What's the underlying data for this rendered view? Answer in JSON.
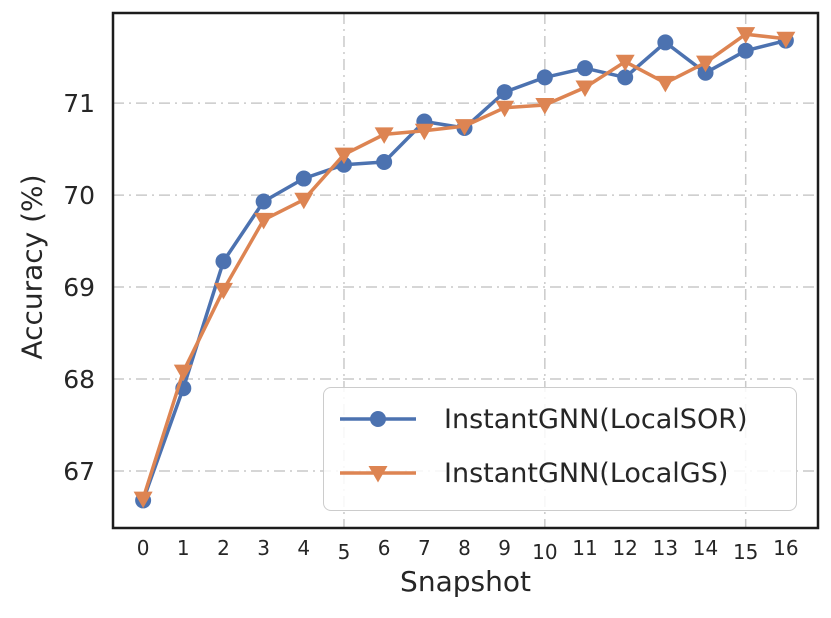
{
  "chart_data": {
    "type": "line",
    "title": "",
    "xlabel": "Snapshot",
    "ylabel": "Accuracy (%)",
    "x": [
      0,
      1,
      2,
      3,
      4,
      5,
      6,
      7,
      8,
      9,
      10,
      11,
      12,
      13,
      14,
      15,
      16
    ],
    "series": [
      {
        "name": "InstantGNN(LocalSOR)",
        "marker": "circle",
        "color": "#4C72B0",
        "values": [
          66.68,
          67.9,
          69.28,
          69.93,
          70.18,
          70.33,
          70.36,
          70.8,
          70.73,
          71.12,
          71.28,
          71.38,
          71.28,
          71.66,
          71.33,
          71.57,
          71.68
        ]
      },
      {
        "name": "InstantGNN(LocalGS)",
        "marker": "triangle-down",
        "color": "#DD8452",
        "values": [
          66.7,
          68.08,
          68.97,
          69.73,
          69.95,
          70.44,
          70.66,
          70.7,
          70.75,
          70.95,
          70.98,
          71.17,
          71.45,
          71.22,
          71.44,
          71.75,
          71.7
        ]
      }
    ],
    "xlim": [
      -0.75,
      16.8
    ],
    "ylim": [
      66.38,
      71.98
    ],
    "yticks": [
      67,
      68,
      69,
      70,
      71
    ],
    "xticks": [
      0,
      1,
      2,
      3,
      4,
      5,
      6,
      7,
      8,
      9,
      10,
      11,
      12,
      13,
      14,
      15,
      16
    ],
    "x_gridlines": [
      5,
      10,
      15
    ],
    "grid": true,
    "gridline_style": "dash-dot",
    "legend_position": "lower right",
    "grid_color": "#c9c9c9",
    "spine_color": "#1c1c1c",
    "text_color": "#262626",
    "background_color": "#ffffff"
  }
}
